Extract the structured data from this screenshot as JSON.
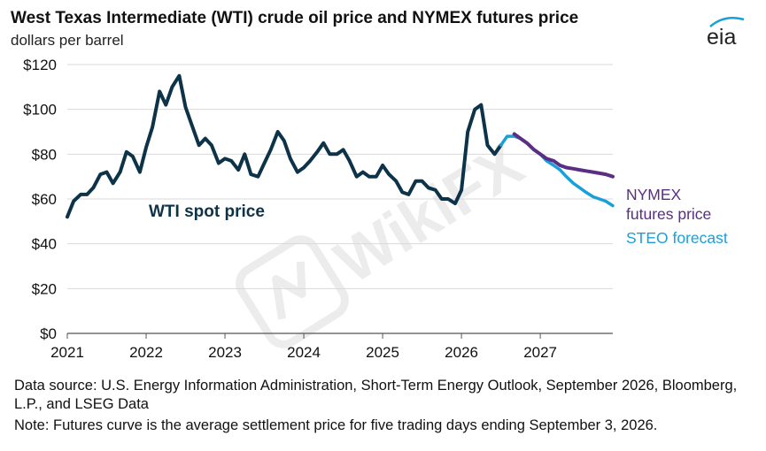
{
  "header": {
    "title": "West Texas Intermediate (WTI) crude oil price and NYMEX futures price",
    "subtitle": "dollars per barrel",
    "logo_text": "eia"
  },
  "colors": {
    "wti": "#0d3349",
    "nymex": "#5b2d83",
    "steo": "#1aa0d8",
    "grid": "#d9d9d9",
    "axis": "#555555",
    "watermark": "#bdbdbd"
  },
  "watermark": {
    "text": "WikiFX"
  },
  "chart_data": {
    "type": "line",
    "y_ticks": [
      "$0",
      "$20",
      "$40",
      "$60",
      "$80",
      "$100",
      "$120"
    ],
    "x_ticks": [
      "2021",
      "2022",
      "2023",
      "2024",
      "2025",
      "2026",
      "2027"
    ],
    "ylim": [
      0,
      120
    ],
    "xlim": [
      2021.0,
      2027.92
    ],
    "grid": "horizontal",
    "series": [
      {
        "name": "WTI spot price",
        "label_position": "inside-left",
        "x": [
          2021.0,
          2021.08,
          2021.17,
          2021.25,
          2021.33,
          2021.42,
          2021.5,
          2021.58,
          2021.67,
          2021.75,
          2021.83,
          2021.92,
          2022.0,
          2022.08,
          2022.17,
          2022.25,
          2022.33,
          2022.42,
          2022.5,
          2022.58,
          2022.67,
          2022.75,
          2022.83,
          2022.92,
          2023.0,
          2023.08,
          2023.17,
          2023.25,
          2023.33,
          2023.42,
          2023.5,
          2023.58,
          2023.67,
          2023.75,
          2023.83,
          2023.92,
          2024.0,
          2024.08,
          2024.17,
          2024.25,
          2024.33,
          2024.42,
          2024.5,
          2024.58,
          2024.67,
          2024.75,
          2024.83,
          2024.92,
          2025.0,
          2025.08,
          2025.17,
          2025.25,
          2025.33,
          2025.42,
          2025.5,
          2025.58,
          2025.67,
          2025.75,
          2025.83,
          2025.92,
          2026.0,
          2026.08,
          2026.17,
          2026.25,
          2026.33,
          2026.42,
          2026.5
        ],
        "y": [
          52,
          59,
          62,
          62,
          65,
          71,
          72,
          67,
          72,
          81,
          79,
          72,
          83,
          92,
          108,
          102,
          110,
          115,
          101,
          93,
          84,
          87,
          84,
          76,
          78,
          77,
          73,
          80,
          71,
          70,
          76,
          82,
          90,
          86,
          78,
          72,
          74,
          77,
          81,
          85,
          80,
          80,
          82,
          77,
          70,
          72,
          70,
          70,
          75,
          71,
          68,
          63,
          62,
          68,
          68,
          65,
          64,
          60,
          60,
          58,
          64,
          90,
          100,
          102,
          84,
          80,
          84
        ]
      },
      {
        "name": "STEO forecast",
        "x": [
          2026.5,
          2026.58,
          2026.67,
          2026.75,
          2026.83,
          2026.92,
          2027.0,
          2027.08,
          2027.17,
          2027.25,
          2027.33,
          2027.42,
          2027.5,
          2027.58,
          2027.67,
          2027.75,
          2027.83,
          2027.92
        ],
        "y": [
          84,
          88,
          88,
          87,
          85,
          82,
          80,
          77,
          75,
          73,
          70,
          67,
          65,
          63,
          61,
          60,
          59,
          57
        ]
      },
      {
        "name": "NYMEX futures price",
        "x": [
          2026.67,
          2026.75,
          2026.83,
          2026.92,
          2027.0,
          2027.08,
          2027.17,
          2027.25,
          2027.33,
          2027.42,
          2027.5,
          2027.58,
          2027.67,
          2027.75,
          2027.83,
          2027.92
        ],
        "y": [
          89,
          87,
          85,
          82,
          80,
          78,
          77,
          75,
          74,
          73.5,
          73,
          72.5,
          72,
          71.5,
          71,
          70
        ]
      }
    ],
    "legend_labels": {
      "wti": "WTI spot price",
      "nymex_line1": "NYMEX",
      "nymex_line2": "futures price",
      "steo": "STEO forecast"
    }
  },
  "footer": {
    "source": "Data source: U.S. Energy Information Administration, Short-Term Energy Outlook, September 2026, Bloomberg, L.P., and LSEG Data",
    "note": "Note: Futures curve is the average settlement price for five trading days ending September 3, 2026."
  }
}
